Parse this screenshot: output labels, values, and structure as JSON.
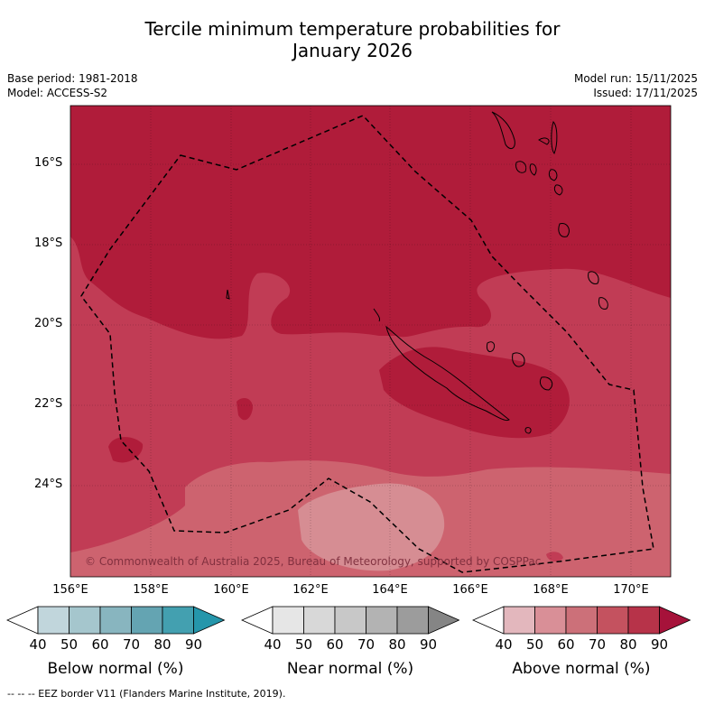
{
  "header": {
    "title_line1": "Tercile minimum temperature probabilities for",
    "title_line2": "January 2026",
    "base_period": "Base period: 1981-2018",
    "model": "Model: ACCESS-S2",
    "model_run": "Model run: 15/11/2025",
    "issued": "Issued: 17/11/2025"
  },
  "map": {
    "lon_labels": [
      "156°E",
      "158°E",
      "160°E",
      "162°E",
      "164°E",
      "166°E",
      "168°E",
      "170°E"
    ],
    "lat_labels": [
      "16°S",
      "18°S",
      "20°S",
      "22°S",
      "24°S"
    ],
    "copyright": "© Commonwealth of Australia 2025, Bureau of Meteorology, supported by COSPPac",
    "colors": {
      "above_80": "#b01c3a",
      "above_70": "#c13c55",
      "above_60": "#cd636f",
      "above_50": "#d68d93"
    }
  },
  "legends": [
    {
      "label": "Below normal (%)",
      "ticks": [
        "40",
        "50",
        "60",
        "70",
        "80",
        "90"
      ],
      "colors": [
        "#c1d6dc",
        "#a5c6cd",
        "#88b5bf",
        "#64a4b2",
        "#43a0b0",
        "#2596ab"
      ]
    },
    {
      "label": "Near normal (%)",
      "ticks": [
        "40",
        "50",
        "60",
        "70",
        "80",
        "90"
      ],
      "colors": [
        "#e6e6e6",
        "#d8d8d8",
        "#c8c8c8",
        "#b3b3b3",
        "#9c9c9c",
        "#858585"
      ]
    },
    {
      "label": "Above normal (%)",
      "ticks": [
        "40",
        "50",
        "60",
        "70",
        "80",
        "90"
      ],
      "colors": [
        "#e3b7bd",
        "#d98f97",
        "#cc7079",
        "#c4525f",
        "#b73349",
        "#a6123a"
      ]
    }
  ],
  "footer": "-- -- -- EEZ border V11 (Flanders Marine Institute, 2019)."
}
